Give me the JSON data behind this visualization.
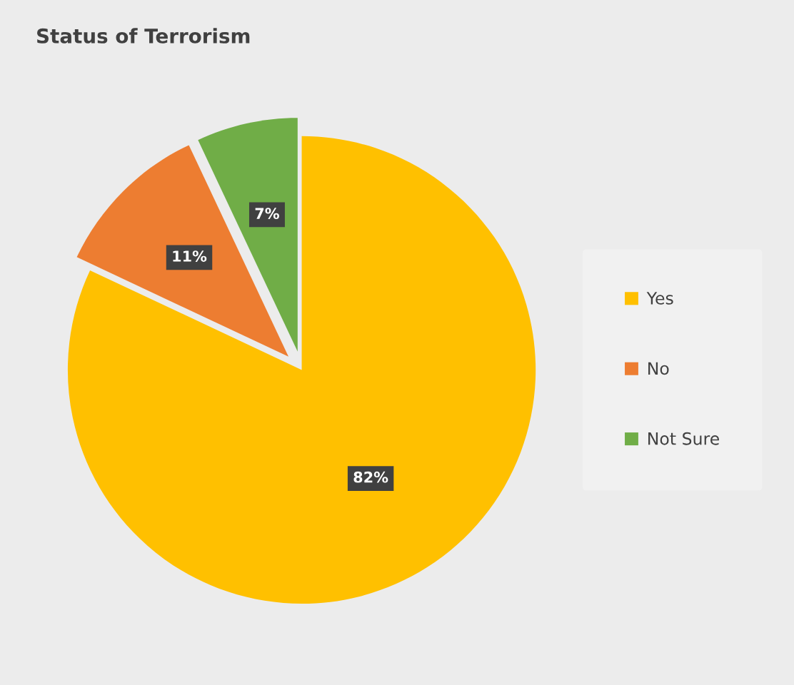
{
  "chart_data": {
    "type": "pie",
    "title": "Status of Terrorism",
    "categories": [
      "Yes",
      "No",
      "Not Sure"
    ],
    "values": [
      82,
      11,
      7
    ],
    "colors": [
      "#ffc000",
      "#ed7d31",
      "#70ad47"
    ],
    "value_labels": [
      "82%",
      "11%",
      "7%"
    ],
    "legend": "right"
  }
}
